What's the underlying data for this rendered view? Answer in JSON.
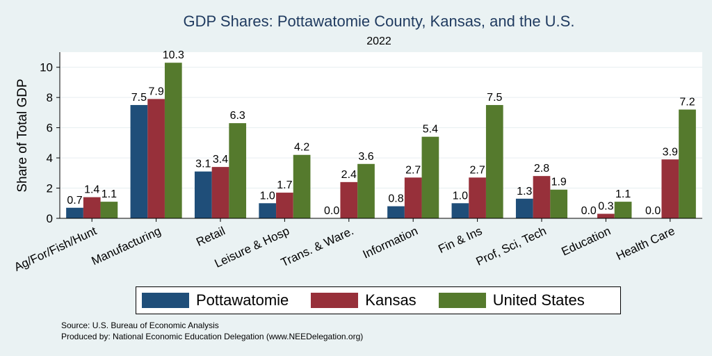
{
  "chart_data": {
    "type": "bar",
    "title": "GDP Shares: Pottawatomie County, Kansas, and the U.S.",
    "subtitle": "2022",
    "ylabel": "Share of Total GDP",
    "xlabel": "",
    "ylim": [
      0,
      11
    ],
    "yticks": [
      "0",
      "2",
      "4",
      "6",
      "8",
      "10"
    ],
    "categories": [
      "Ag/For/Fish/Hunt",
      "Manufacturing",
      "Retail",
      "Leisure & Hosp",
      "Trans. & Ware.",
      "Information",
      "Fin & Ins",
      "Prof, Sci, Tech",
      "Education",
      "Health Care"
    ],
    "series": [
      {
        "name": "Pottawatomie",
        "color": "#1f4e79",
        "values": [
          0.7,
          7.5,
          3.1,
          1.0,
          0.0,
          0.8,
          1.0,
          1.3,
          0.0,
          0.0
        ],
        "labels": [
          "0.7",
          "7.5",
          "3.1",
          "1.0",
          "0.0",
          "0.8",
          "1.0",
          "1.3",
          "0.0",
          "0.0"
        ]
      },
      {
        "name": "Kansas",
        "color": "#97303a",
        "values": [
          1.4,
          7.9,
          3.4,
          1.7,
          2.4,
          2.7,
          2.7,
          2.8,
          0.3,
          3.9
        ],
        "labels": [
          "1.4",
          "7.9",
          "3.4",
          "1.7",
          "2.4",
          "2.7",
          "2.7",
          "2.8",
          "0.3",
          "3.9"
        ]
      },
      {
        "name": "United States",
        "color": "#557a2d",
        "values": [
          1.1,
          10.3,
          6.3,
          4.2,
          3.6,
          5.4,
          7.5,
          1.9,
          1.1,
          7.2
        ],
        "labels": [
          "1.1",
          "10.3",
          "6.3",
          "4.2",
          "3.6",
          "5.4",
          "7.5",
          "1.9",
          "1.1",
          "7.2"
        ]
      }
    ],
    "legend_position": "bottom"
  },
  "notes": {
    "source": "Source: U.S. Bureau of Economic Analysis",
    "produced": "Produced by: National Economic Education Delegation (www.NEEDelegation.org)"
  }
}
